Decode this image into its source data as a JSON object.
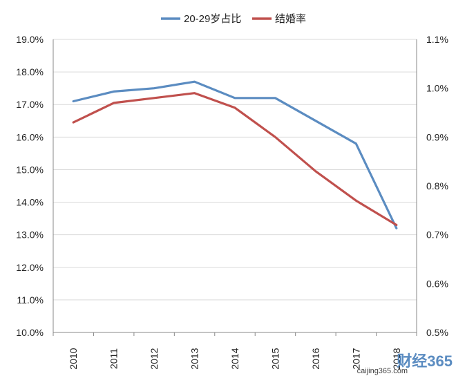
{
  "chart_data": {
    "type": "line",
    "categories": [
      "2010",
      "2011",
      "2012",
      "2013",
      "2014",
      "2015",
      "2016",
      "2017",
      "2018"
    ],
    "series": [
      {
        "name": "20-29岁占比",
        "axis": "left",
        "color": "#5b8cc1",
        "values": [
          17.1,
          17.4,
          17.5,
          17.7,
          17.2,
          17.2,
          16.5,
          15.8,
          13.2
        ]
      },
      {
        "name": "结婚率",
        "axis": "right",
        "color": "#c0504d",
        "values": [
          0.93,
          0.97,
          0.98,
          0.99,
          0.96,
          0.9,
          0.83,
          0.77,
          0.72
        ]
      }
    ],
    "y_left": {
      "ylim": [
        10.0,
        19.0
      ],
      "ticks": [
        "19.0%",
        "18.0%",
        "17.0%",
        "16.0%",
        "15.0%",
        "14.0%",
        "13.0%",
        "12.0%",
        "11.0%",
        "10.0%"
      ]
    },
    "y_right": {
      "ylim": [
        0.5,
        1.1
      ],
      "ticks": [
        "1.1%",
        "1.0%",
        "0.9%",
        "0.8%",
        "0.7%",
        "0.6%",
        "0.5%"
      ]
    },
    "grid": "horizontal",
    "legend_position": "top"
  },
  "watermark": {
    "brand": "财经365",
    "url": "caijing365.com"
  }
}
